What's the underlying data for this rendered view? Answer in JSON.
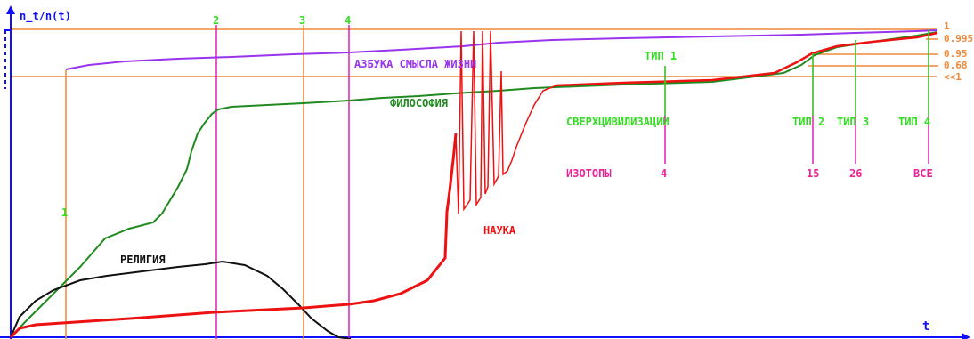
{
  "colors": {
    "axis": "#1010ff",
    "orange": "#f08838",
    "magenta": "#e020b0",
    "green_line": "#208a20",
    "green_text": "#33dd22",
    "black": "#101010",
    "red": "#ee1111",
    "purple": "#9933ee",
    "pink_text": "#ee2299"
  },
  "axes": {
    "y_label": "n_t/n(t)",
    "x_label": "t"
  },
  "markers": {
    "m1": "1",
    "m2": "2",
    "m3": "3",
    "m4": "4"
  },
  "right_scale": [
    "1",
    "0.995",
    "0.95",
    "0.68",
    "<<1"
  ],
  "curve_labels": {
    "alphabet": "АЗБУКА СМЫСЛА ЖИЗНИ",
    "philosophy": "ФИЛОСОФИЯ",
    "religion": "РЕЛИГИЯ",
    "science": "НАУКА",
    "supercivilizations": "СВЕРХЦИВИЛИЗАЦИИ",
    "isotopes": "ИЗОТОПЫ"
  },
  "types": {
    "t1": "ТИП 1",
    "t2": "ТИП 2",
    "t3": "ТИП 3",
    "t4": "ТИП 4"
  },
  "isotope_counts": {
    "c1": "4",
    "c2": "15",
    "c3": "26",
    "c4": "ВСЕ"
  },
  "chart_data": {
    "type": "line",
    "series": [
      {
        "key": "alphabet",
        "points": [
          [
            0.0,
            0.78
          ],
          [
            0.5,
            0.81
          ],
          [
            1.0,
            0.84
          ],
          [
            2.0,
            0.86
          ],
          [
            4.0,
            0.89
          ],
          [
            6.0,
            0.92
          ],
          [
            8.0,
            0.945
          ],
          [
            9.0,
            0.97
          ],
          [
            10.0,
            0.98
          ]
        ]
      },
      {
        "key": "philosophy",
        "points": [
          [
            0.0,
            0.0
          ],
          [
            0.5,
            0.32
          ],
          [
            1.0,
            0.44
          ],
          [
            1.4,
            0.55
          ],
          [
            1.8,
            0.78
          ],
          [
            2.0,
            0.8
          ],
          [
            3.0,
            0.81
          ],
          [
            5.0,
            0.82
          ],
          [
            6.0,
            0.86
          ],
          [
            7.0,
            0.9
          ],
          [
            8.5,
            0.92
          ],
          [
            9.0,
            0.95
          ],
          [
            10.0,
            0.98
          ]
        ]
      },
      {
        "key": "religion",
        "points": [
          [
            0.0,
            0.0
          ],
          [
            0.2,
            0.18
          ],
          [
            0.5,
            0.22
          ],
          [
            1.0,
            0.26
          ],
          [
            1.5,
            0.28
          ],
          [
            2.0,
            0.3
          ],
          [
            2.5,
            0.27
          ],
          [
            3.0,
            0.12
          ],
          [
            3.4,
            0.0
          ]
        ]
      },
      {
        "key": "science",
        "points": [
          [
            0.0,
            0.0
          ],
          [
            0.1,
            0.03
          ],
          [
            1.0,
            0.05
          ],
          [
            2.0,
            0.08
          ],
          [
            3.0,
            0.1
          ],
          [
            3.5,
            0.12
          ],
          [
            4.2,
            0.18
          ],
          [
            4.6,
            0.5
          ],
          [
            5.0,
            0.65
          ],
          [
            5.3,
            0.75
          ],
          [
            5.6,
            0.92
          ],
          [
            6.0,
            0.86
          ],
          [
            7.0,
            0.9
          ],
          [
            8.5,
            0.92
          ],
          [
            9.0,
            0.95
          ],
          [
            10.0,
            0.98
          ]
        ]
      }
    ]
  }
}
